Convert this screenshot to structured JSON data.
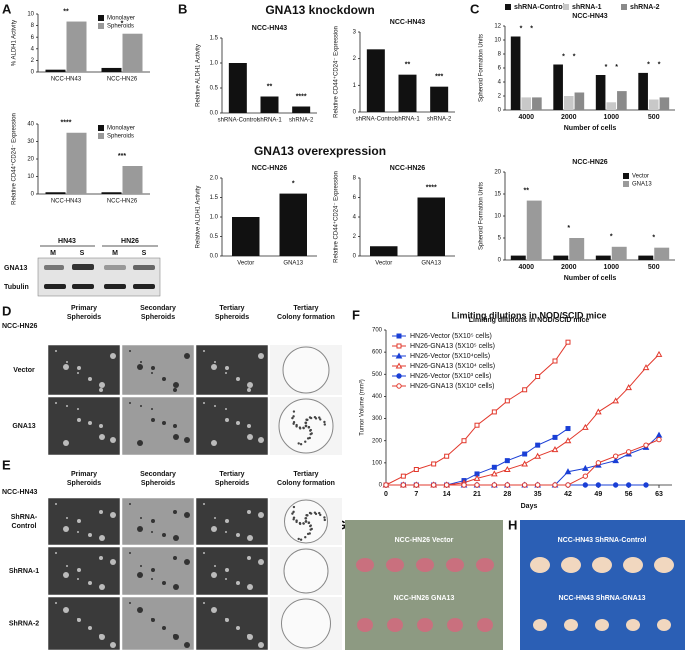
{
  "chart_data": [
    {
      "type": "bar",
      "ylabel": "% ALDH1 Activity",
      "categories": [
        "NCC-HN43",
        "NCC-HN26"
      ],
      "series": [
        {
          "name": "Monolayer",
          "color": "#111111",
          "values": [
            0.4,
            0.7
          ]
        },
        {
          "name": "Spheroids",
          "color": "#9a9a9a",
          "values": [
            8.7,
            6.6
          ]
        }
      ],
      "ylim": [
        0,
        10
      ],
      "yticks": [
        0,
        2,
        4,
        6,
        8,
        10
      ],
      "annotations": [
        "**",
        "*"
      ],
      "legend": "upper right"
    },
    {
      "type": "bar",
      "ylabel": "Relative CD44⁺CD24⁻ Expression",
      "categories": [
        "NCC-HN43",
        "NCC-HN26"
      ],
      "series": [
        {
          "name": "Monolayer",
          "color": "#111111",
          "values": [
            1,
            1
          ]
        },
        {
          "name": "Spheroids",
          "color": "#9a9a9a",
          "values": [
            35,
            16
          ]
        }
      ],
      "ylim": [
        0,
        40
      ],
      "yticks": [
        0,
        10,
        20,
        30,
        40
      ],
      "annotations": [
        "****",
        "***"
      ],
      "legend": "upper right"
    },
    {
      "type": "bar",
      "title": "NCC-HN43",
      "ylabel": "Relative ALDH1 Activity",
      "categories": [
        "shRNA-Control",
        "shRNA-1",
        "shRNA-2"
      ],
      "values": [
        1.0,
        0.33,
        0.13
      ],
      "color": "#111111",
      "ylim": [
        0,
        1.5
      ],
      "yticks": [
        {
          "value": 0,
          "label": "0.0"
        },
        0.5,
        {
          "value": 1,
          "label": "1.0"
        },
        1.5
      ],
      "annotations": [
        "**",
        "****"
      ]
    },
    {
      "type": "bar",
      "title": "NCC-HN43",
      "ylabel": "Relative CD44⁺CD24⁻ Expression",
      "categories": [
        "shRNA-Control",
        "shRNA-1",
        "shRNA-2"
      ],
      "values": [
        2.35,
        1.4,
        0.95
      ],
      "color": "#111111",
      "ylim": [
        0,
        3
      ],
      "yticks": [
        0,
        1,
        2,
        3
      ],
      "annotations": [
        "**",
        "***"
      ]
    },
    {
      "type": "bar",
      "title": "NCC-HN26",
      "ylabel": "Relative ALDH1 Activity",
      "categories": [
        "Vector",
        "GNA13"
      ],
      "values": [
        1,
        1.6
      ],
      "color": "#111111",
      "ylim": [
        0,
        2
      ],
      "yticks": [
        {
          "value": 0,
          "label": "0.0"
        },
        0.5,
        {
          "value": 1,
          "label": "1.0"
        },
        1.5,
        {
          "value": 2,
          "label": "2.0"
        }
      ],
      "annotations": [
        "*"
      ]
    },
    {
      "type": "bar",
      "title": "NCC-HN26",
      "ylabel": "Relative CD44⁺CD24⁻ Expression",
      "categories": [
        "Vector",
        "GNA13"
      ],
      "values": [
        1,
        6
      ],
      "color": "#111111",
      "ylim": [
        0,
        8
      ],
      "yticks": [
        0,
        2,
        4,
        6,
        8
      ],
      "annotations": [
        "****"
      ]
    },
    {
      "type": "bar",
      "title": "NCC-HN43",
      "ylabel": "Spheroid Formation Units",
      "xlabel": "Number of cells",
      "categories": [
        "4000",
        "2000",
        "1000",
        "500"
      ],
      "series": [
        {
          "name": "shRNA-Control",
          "color": "#111111",
          "values": [
            10.5,
            6.5,
            5,
            5.3
          ]
        },
        {
          "name": "shRNA-1",
          "color": "#c8c8c8",
          "values": [
            1.8,
            2,
            1.1,
            1.5
          ]
        },
        {
          "name": "shRNA-2",
          "color": "#8a8a8a",
          "values": [
            1.8,
            2.5,
            2.7,
            1.8
          ]
        }
      ],
      "ylim": [
        0,
        12
      ],
      "yticks": [
        0,
        2,
        4,
        6,
        8,
        10,
        12
      ],
      "annotations": [
        [
          "*",
          "*"
        ],
        [
          "*",
          "*"
        ],
        [
          "*",
          "*"
        ],
        [
          "*",
          "*"
        ]
      ],
      "legend": "top"
    },
    {
      "type": "bar",
      "title": "NCC-HN26",
      "ylabel": "Spheroid Formation Units",
      "xlabel": "Number of cells",
      "categories": [
        "4000",
        "2000",
        "1000",
        "500"
      ],
      "series": [
        {
          "name": "Vector",
          "color": "#111111",
          "values": [
            1,
            1,
            1,
            1
          ]
        },
        {
          "name": "GNA13",
          "color": "#9a9a9a",
          "values": [
            13.5,
            5,
            3,
            2.8
          ]
        }
      ],
      "ylim": [
        0,
        20
      ],
      "yticks": [
        0,
        5,
        10,
        15,
        20
      ],
      "annotations": [
        "**",
        "*",
        "*",
        "*"
      ],
      "legend": "upper right"
    },
    {
      "type": "line",
      "title": "Limiting dilutions in NOD/SCID mice",
      "xlabel": "Days",
      "ylabel": "Tumor Volume (mm³)",
      "x": [
        0,
        4,
        7,
        11,
        14,
        18,
        21,
        25,
        28,
        32,
        35,
        39,
        42,
        46,
        49,
        53,
        56,
        60,
        63
      ],
      "xlim": [
        0,
        66
      ],
      "xticks": [
        0,
        7,
        14,
        21,
        28,
        35,
        42,
        49,
        56,
        63
      ],
      "ylim": [
        0,
        700
      ],
      "yticks": [
        0,
        100,
        200,
        300,
        400,
        500,
        600,
        700
      ],
      "legend": "upper left",
      "series": [
        {
          "name": "HN26-Vector (5X10⁵ cells)",
          "color": "#1a3fd6",
          "marker": "square",
          "values": [
            0,
            0,
            0,
            0,
            0,
            20,
            50,
            80,
            110,
            140,
            180,
            215,
            255,
            null,
            null,
            null,
            null,
            null,
            null
          ]
        },
        {
          "name": "HN26-GNA13 (5X10⁵ cells)",
          "color": "#e2382c",
          "marker": "square",
          "values": [
            0,
            40,
            70,
            95,
            130,
            200,
            270,
            330,
            380,
            430,
            490,
            560,
            645,
            null,
            null,
            null,
            null,
            null,
            null
          ]
        },
        {
          "name": "HN26-Vector (5X10⁴cells)",
          "color": "#1a3fd6",
          "marker": "triangle",
          "values": [
            0,
            0,
            0,
            0,
            0,
            0,
            0,
            0,
            0,
            0,
            0,
            0,
            60,
            75,
            90,
            110,
            140,
            170,
            225
          ]
        },
        {
          "name": "HN26-GNA13 (5X10⁴ cells)",
          "color": "#e2382c",
          "marker": "triangle",
          "values": [
            0,
            0,
            0,
            0,
            0,
            10,
            30,
            50,
            70,
            95,
            130,
            160,
            200,
            260,
            330,
            380,
            440,
            530,
            590
          ]
        },
        {
          "name": "HN26-Vector (5X10³ cells)",
          "color": "#1a3fd6",
          "marker": "circle",
          "values": [
            0,
            0,
            0,
            0,
            0,
            0,
            0,
            0,
            0,
            0,
            0,
            0,
            0,
            0,
            0,
            0,
            0,
            0,
            null
          ]
        },
        {
          "name": "HN26-GNA13 (5X10³ cells)",
          "color": "#e2382c",
          "marker": "circle",
          "values": [
            0,
            0,
            0,
            0,
            0,
            0,
            0,
            0,
            0,
            0,
            0,
            0,
            0,
            40,
            100,
            130,
            150,
            180,
            205
          ]
        }
      ]
    }
  ],
  "figure": {
    "panel_labels": [
      "A",
      "B",
      "C",
      "D",
      "E",
      "F",
      "G",
      "H"
    ],
    "headings": [
      "GNA13 knockdown",
      "GNA13 overexpression"
    ],
    "blot": {
      "lines": [
        "HN43",
        "HN26"
      ],
      "lanes": [
        "M",
        "S",
        "M",
        "S"
      ],
      "rows": [
        "GNA13",
        "Tubulin"
      ]
    },
    "panel_d": {
      "corner": "NCC-HN26",
      "columns": [
        [
          "Primary",
          "Spheroids"
        ],
        [
          "Secondary",
          "Spheroids"
        ],
        [
          "Tertiary",
          "Spheroids"
        ],
        [
          "Tertiary",
          "Colony formation"
        ]
      ],
      "rows": [
        [
          "Vector"
        ],
        [
          "GNA13"
        ]
      ]
    },
    "panel_e": {
      "corner": "NCC-HN43",
      "columns": [
        [
          "Primary",
          "Spheroids"
        ],
        [
          "Secondary",
          "Spheroids"
        ],
        [
          "Tertiary",
          "Spheroids"
        ],
        [
          "Tertiary",
          "Colony formation"
        ]
      ],
      "rows": [
        [
          "ShRNA-",
          "Control"
        ],
        [
          "ShRNA-1"
        ],
        [
          "ShRNA-2"
        ]
      ]
    },
    "panel_g": [
      "NCC-HN26 Vector",
      "NCC-HN26 GNA13"
    ],
    "panel_h": [
      "NCC-HN43 ShRNA-Control",
      "NCC-HN43 ShRNA-GNA13"
    ]
  }
}
